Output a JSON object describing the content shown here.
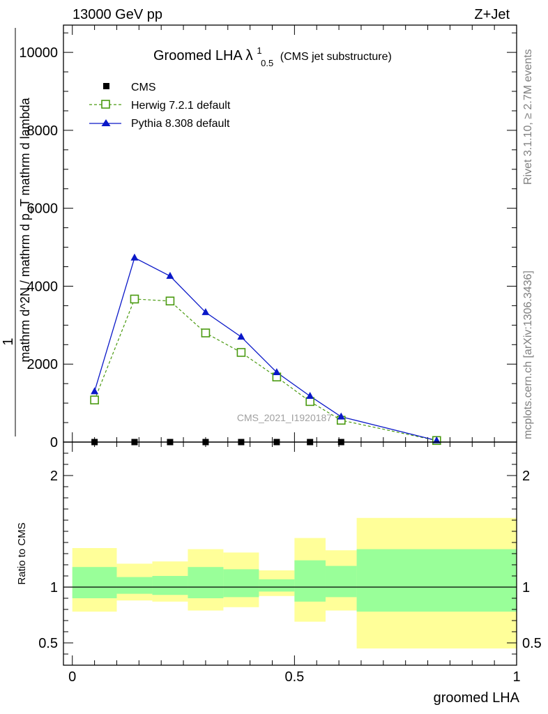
{
  "header": {
    "left": "13000 GeV pp",
    "right": "Z+Jet"
  },
  "side": {
    "rivet": "Rivet 3.1.10, ≥ 2.7M events",
    "mcplots": "mcplots.cern.ch [arXiv:1306.3436]"
  },
  "chart_data": [
    {
      "type": "line",
      "title_main": "Groomed LHA",
      "title_lambda": "λ",
      "title_sup": "1",
      "title_sub": "0.5",
      "title_note": "(CMS jet substructure)",
      "watermark": "CMS_2021_I1920187",
      "ylabel_numerator": "1",
      "ylabel_denominator_top": "mathrm d lambda",
      "ylabel_denominator_mid": "mathrm d N / mathrm d p_T mathrm d p_T mathrm d^2N",
      "ylabel_full": "mathrm d^2N / mathrm d p_T mathrm d lambda",
      "ylim": [
        0,
        10700
      ],
      "xlim": [
        -0.02,
        1.0
      ],
      "yticks": [
        {
          "v": 0,
          "label": "0"
        },
        {
          "v": 2000,
          "label": "2000"
        },
        {
          "v": 4000,
          "label": "4000"
        },
        {
          "v": 6000,
          "label": "6000"
        },
        {
          "v": 8000,
          "label": "8000"
        },
        {
          "v": 10000,
          "label": "10000"
        }
      ],
      "legend": [
        {
          "name": "CMS",
          "color": "#000000",
          "marker": "filled-square",
          "line": "none"
        },
        {
          "name": "Herwig 7.2.1 default",
          "color": "#4a9a10",
          "marker": "open-square",
          "line": "dashed"
        },
        {
          "name": "Pythia 8.308 default",
          "color": "#0a18c8",
          "marker": "filled-triangle",
          "line": "solid"
        }
      ],
      "series": [
        {
          "name": "CMS",
          "x": [
            0.05,
            0.14,
            0.22,
            0.3,
            0.38,
            0.46,
            0.535,
            0.605
          ],
          "values": [
            0,
            0,
            0,
            0,
            0,
            0,
            0,
            0
          ]
        },
        {
          "name": "Herwig 7.2.1 default",
          "x": [
            0.05,
            0.14,
            0.22,
            0.3,
            0.38,
            0.46,
            0.535,
            0.605,
            0.82
          ],
          "values": [
            1080,
            3670,
            3620,
            2800,
            2300,
            1670,
            1040,
            560,
            40
          ]
        },
        {
          "name": "Pythia 8.308 default",
          "x": [
            0.05,
            0.14,
            0.22,
            0.3,
            0.38,
            0.46,
            0.535,
            0.605,
            0.82
          ],
          "values": [
            1300,
            4730,
            4260,
            3330,
            2700,
            1790,
            1180,
            650,
            40
          ]
        }
      ]
    },
    {
      "type": "area",
      "ylabel": "Ratio to CMS",
      "xlabel": "groomed LHA",
      "ylim": [
        0.3,
        2.3
      ],
      "xlim": [
        -0.02,
        1.0
      ],
      "yticks": [
        {
          "v": 0.5,
          "label": "0.5"
        },
        {
          "v": 1,
          "label": "1"
        },
        {
          "v": 2,
          "label": "2"
        }
      ],
      "xticks": [
        {
          "v": 0,
          "label": "0"
        },
        {
          "v": 0.5,
          "label": "0.5"
        },
        {
          "v": 1,
          "label": "1"
        }
      ],
      "band_colors": {
        "outer": "#ffff99",
        "inner": "#99ff99",
        "line": "#000000"
      },
      "bins": [
        {
          "lo": 0.0,
          "hi": 0.1,
          "outer": [
            0.78,
            1.35
          ],
          "inner": [
            0.9,
            1.18
          ]
        },
        {
          "lo": 0.1,
          "hi": 0.18,
          "outer": [
            0.88,
            1.21
          ],
          "inner": [
            0.94,
            1.09
          ]
        },
        {
          "lo": 0.18,
          "hi": 0.26,
          "outer": [
            0.87,
            1.23
          ],
          "inner": [
            0.93,
            1.1
          ]
        },
        {
          "lo": 0.26,
          "hi": 0.34,
          "outer": [
            0.79,
            1.34
          ],
          "inner": [
            0.9,
            1.18
          ]
        },
        {
          "lo": 0.34,
          "hi": 0.42,
          "outer": [
            0.82,
            1.31
          ],
          "inner": [
            0.91,
            1.16
          ]
        },
        {
          "lo": 0.42,
          "hi": 0.5,
          "outer": [
            0.92,
            1.15
          ],
          "inner": [
            0.96,
            1.07
          ]
        },
        {
          "lo": 0.5,
          "hi": 0.57,
          "outer": [
            0.69,
            1.44
          ],
          "inner": [
            0.87,
            1.24
          ]
        },
        {
          "lo": 0.57,
          "hi": 0.64,
          "outer": [
            0.79,
            1.33
          ],
          "inner": [
            0.91,
            1.19
          ]
        },
        {
          "lo": 0.64,
          "hi": 1.0,
          "outer": [
            0.45,
            1.62
          ],
          "inner": [
            0.78,
            1.34
          ]
        }
      ]
    }
  ]
}
